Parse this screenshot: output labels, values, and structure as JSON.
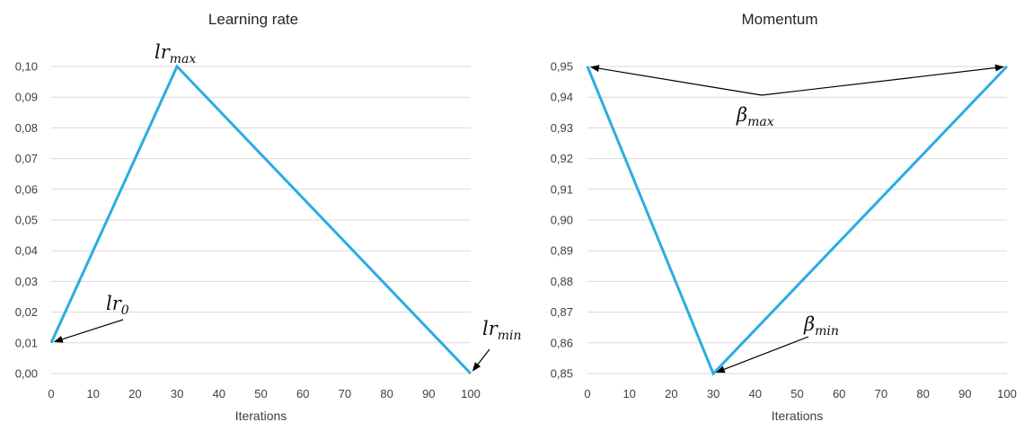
{
  "chart_data": [
    {
      "type": "line",
      "title": "Learning rate",
      "xlabel": "Iterations",
      "ylabel": "",
      "x_ticks": [
        "0",
        "10",
        "20",
        "30",
        "40",
        "50",
        "60",
        "70",
        "80",
        "90",
        "100"
      ],
      "y_ticks": [
        "0,00",
        "0,01",
        "0,02",
        "0,03",
        "0,04",
        "0,05",
        "0,06",
        "0,07",
        "0,08",
        "0,09",
        "0,10"
      ],
      "xlim": [
        0,
        100
      ],
      "ylim": [
        0,
        0.1
      ],
      "grid": "horizontal",
      "series": [
        {
          "x": [
            0,
            30,
            100
          ],
          "y": [
            0.01,
            0.1,
            0.0
          ],
          "color": "#2AADE2"
        }
      ],
      "annotations": [
        {
          "base": "lr",
          "sub": "max",
          "x": 30,
          "y": 0.1,
          "arrow": false
        },
        {
          "base": "lr",
          "sub": "0",
          "x": 0,
          "y": 0.01,
          "arrow": true
        },
        {
          "base": "lr",
          "sub": "min",
          "x": 100,
          "y": 0.0,
          "arrow": true
        }
      ]
    },
    {
      "type": "line",
      "title": "Momentum",
      "xlabel": "Iterations",
      "ylabel": "",
      "x_ticks": [
        "0",
        "10",
        "20",
        "30",
        "40",
        "50",
        "60",
        "70",
        "80",
        "90",
        "100"
      ],
      "y_ticks": [
        "0,85",
        "0,86",
        "0,87",
        "0,88",
        "0,89",
        "0,90",
        "0,91",
        "0,92",
        "0,93",
        "0,94",
        "0,95"
      ],
      "xlim": [
        0,
        100
      ],
      "ylim": [
        0.85,
        0.95
      ],
      "grid": "horizontal",
      "series": [
        {
          "x": [
            0,
            30,
            100
          ],
          "y": [
            0.95,
            0.85,
            0.95
          ],
          "color": "#2AADE2"
        }
      ],
      "annotations": [
        {
          "base": "β",
          "sub": "max",
          "x": 0,
          "y": 0.95,
          "arrow": true
        },
        {
          "base": "β",
          "sub": "max",
          "x": 100,
          "y": 0.95,
          "arrow": true,
          "label_hidden": true
        },
        {
          "base": "β",
          "sub": "min",
          "x": 30,
          "y": 0.85,
          "arrow": true
        }
      ]
    }
  ]
}
